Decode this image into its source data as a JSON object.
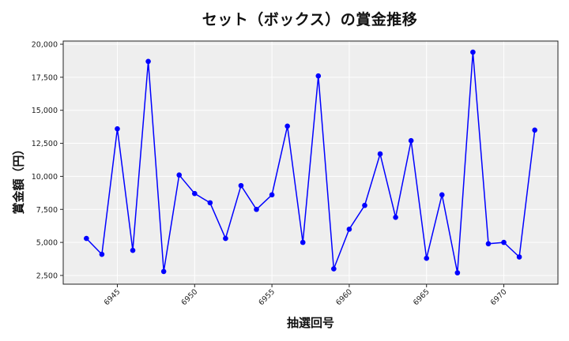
{
  "chart_data": {
    "type": "line",
    "title": "セット（ボックス）の賞金推移",
    "xlabel": "抽選回号",
    "ylabel": "賞金額（円）",
    "x": [
      6943,
      6944,
      6945,
      6946,
      6947,
      6948,
      6949,
      6950,
      6951,
      6952,
      6953,
      6954,
      6955,
      6956,
      6957,
      6958,
      6959,
      6960,
      6961,
      6962,
      6963,
      6964,
      6965,
      6966,
      6967,
      6968,
      6969,
      6970,
      6971,
      6972
    ],
    "series": [
      {
        "name": "賞金額",
        "color": "#0000ff",
        "marker": "circle",
        "values": [
          5300,
          4100,
          13600,
          4400,
          18700,
          2800,
          10100,
          8700,
          8000,
          5300,
          9300,
          7500,
          8600,
          13800,
          5000,
          17600,
          3000,
          6000,
          7800,
          11700,
          6900,
          12700,
          3800,
          8600,
          2700,
          19400,
          4900,
          5000,
          3900,
          13500
        ]
      }
    ],
    "xticks": [
      6945,
      6950,
      6955,
      6960,
      6965,
      6970
    ],
    "xtick_labels": [
      "6945",
      "6950",
      "6955",
      "6960",
      "6965",
      "6970"
    ],
    "yticks": [
      2500,
      5000,
      7500,
      10000,
      12500,
      15000,
      17500,
      20000
    ],
    "ytick_labels": [
      "2,500",
      "5,000",
      "7,500",
      "10,000",
      "12,500",
      "15,000",
      "17,500",
      "20,000"
    ],
    "xlim": [
      6941.5,
      6973.5
    ],
    "ylim": [
      1840,
      20240
    ],
    "grid": true,
    "legend": null,
    "colors": {
      "line": "#0000ff",
      "plot_background": "#eeeeee",
      "grid": "#ffffff"
    }
  }
}
